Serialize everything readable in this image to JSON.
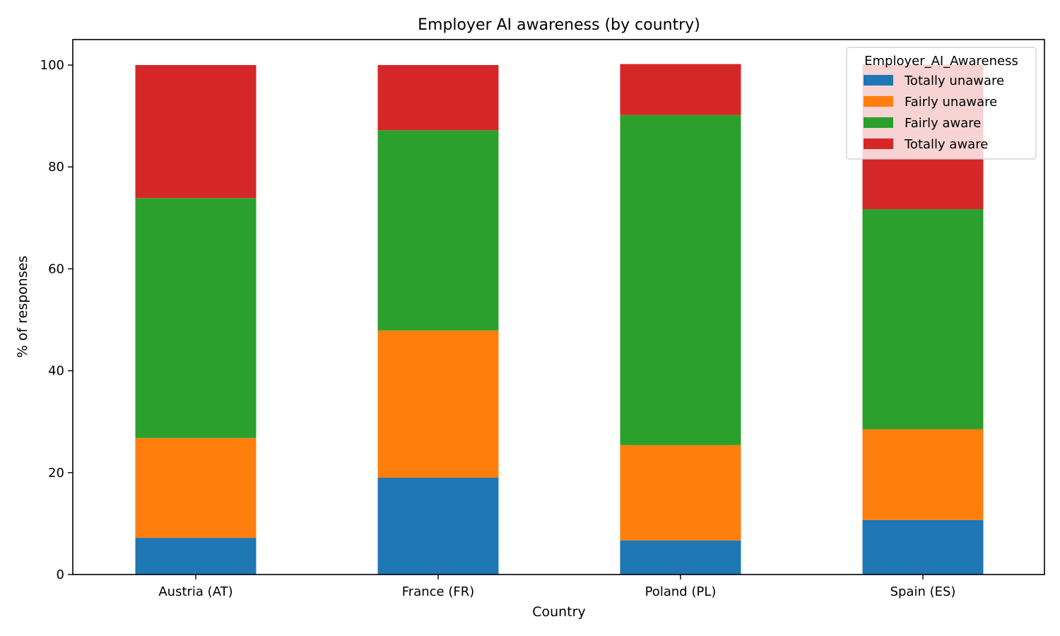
{
  "chart_data": {
    "type": "bar",
    "stacked": true,
    "title": "Employer AI awareness (by country)",
    "xlabel": "Country",
    "ylabel": "% of responses",
    "ylim": [
      0,
      105
    ],
    "yticks": [
      0,
      20,
      40,
      60,
      80,
      100
    ],
    "grid": false,
    "categories": [
      "Austria (AT)",
      "France (FR)",
      "Poland (PL)",
      "Spain (ES)"
    ],
    "legend": {
      "title": "Employer_AI_Awareness",
      "placement": "top-right"
    },
    "series": [
      {
        "name": "Totally unaware",
        "color": "#1f77b4",
        "values": [
          7.2,
          19.0,
          6.7,
          10.7
        ]
      },
      {
        "name": "Fairly unaware",
        "color": "#ff7f0e",
        "values": [
          19.6,
          28.9,
          18.7,
          17.8
        ]
      },
      {
        "name": "Fairly aware",
        "color": "#2ca02c",
        "values": [
          47.1,
          39.3,
          64.8,
          43.2
        ]
      },
      {
        "name": "Totally aware",
        "color": "#d62728",
        "values": [
          26.1,
          12.8,
          10.0,
          28.4
        ]
      }
    ]
  }
}
